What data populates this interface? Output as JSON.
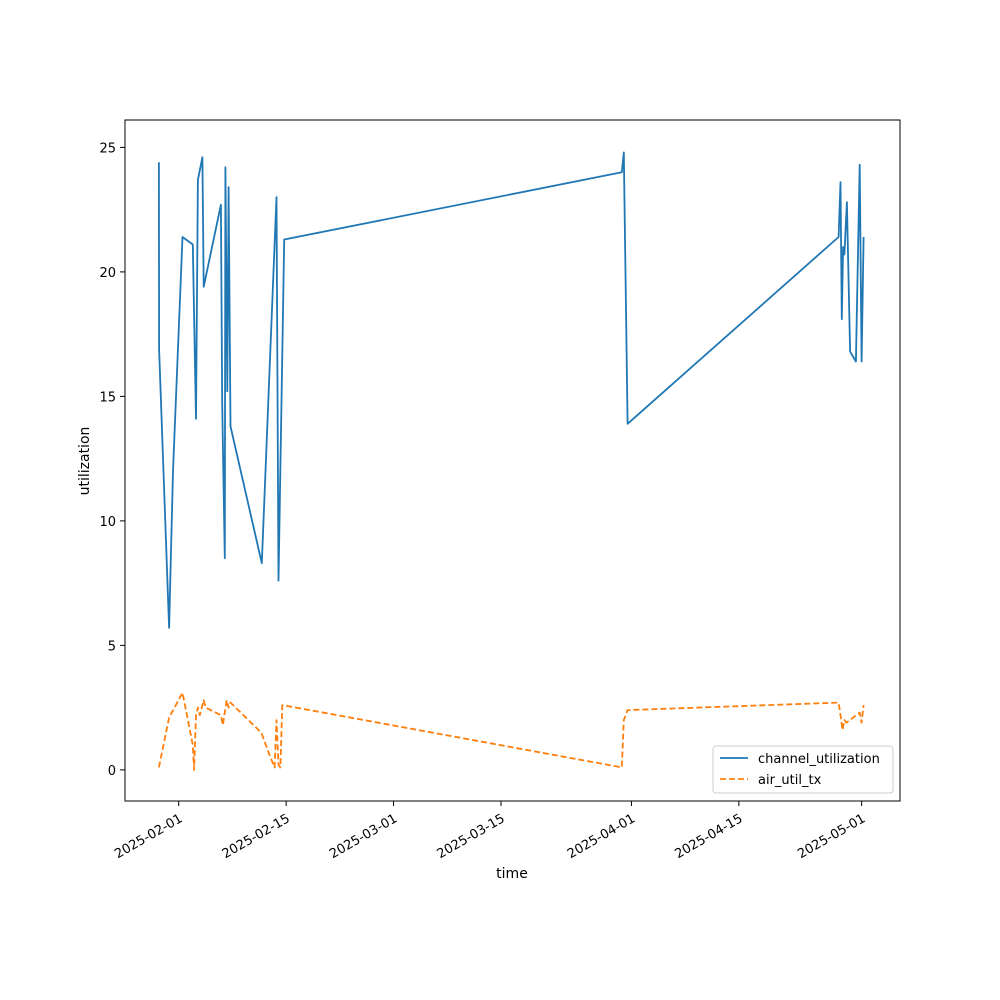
{
  "chart_data": {
    "type": "line",
    "xlabel": "time",
    "ylabel": "utilization",
    "xlim": [
      "2025-01-25",
      "2025-05-06"
    ],
    "ylim": [
      -1.25,
      26.1
    ],
    "x_ticks": [
      "2025-02-01",
      "2025-02-15",
      "2025-03-01",
      "2025-03-15",
      "2025-04-01",
      "2025-04-15",
      "2025-05-01"
    ],
    "y_ticks": [
      0,
      5,
      10,
      15,
      20,
      25
    ],
    "grid": false,
    "legend_position": "lower right",
    "series": [
      {
        "name": "channel_utilization",
        "color": "#1f77b4",
        "dash": "solid",
        "points": [
          [
            "2025-01-29 10:00",
            24.4
          ],
          [
            "2025-01-29 10:30",
            16.9
          ],
          [
            "2025-01-30 18:00",
            5.7
          ],
          [
            "2025-01-31 06:00",
            12.0
          ],
          [
            "2025-02-01 12:00",
            21.4
          ],
          [
            "2025-02-02 20:00",
            21.1
          ],
          [
            "2025-02-03 06:00",
            14.1
          ],
          [
            "2025-02-03 12:00",
            23.7
          ],
          [
            "2025-02-04 02:00",
            24.6
          ],
          [
            "2025-02-04 06:00",
            19.4
          ],
          [
            "2025-02-06 12:00",
            22.7
          ],
          [
            "2025-02-06 16:00",
            14.7
          ],
          [
            "2025-02-07 00:00",
            8.5
          ],
          [
            "2025-02-07 02:00",
            24.2
          ],
          [
            "2025-02-07 08:00",
            15.2
          ],
          [
            "2025-02-07 12:00",
            23.4
          ],
          [
            "2025-02-07 18:00",
            13.8
          ],
          [
            "2025-02-11 20:00",
            8.3
          ],
          [
            "2025-02-12 20:00",
            16.0
          ],
          [
            "2025-02-13 18:00",
            23.0
          ],
          [
            "2025-02-14 00:00",
            7.6
          ],
          [
            "2025-02-14 18:00",
            21.3
          ],
          [
            "2025-03-30 18:00",
            24.0
          ],
          [
            "2025-03-31 00:00",
            24.8
          ],
          [
            "2025-03-31 12:00",
            13.9
          ],
          [
            "2025-04-28 00:00",
            21.4
          ],
          [
            "2025-04-28 06:00",
            23.6
          ],
          [
            "2025-04-28 10:00",
            18.1
          ],
          [
            "2025-04-28 14:00",
            21.0
          ],
          [
            "2025-04-28 18:00",
            20.7
          ],
          [
            "2025-04-29 02:00",
            22.8
          ],
          [
            "2025-04-29 12:00",
            16.8
          ],
          [
            "2025-04-30 06:00",
            16.4
          ],
          [
            "2025-04-30 18:00",
            24.3
          ],
          [
            "2025-05-01 00:00",
            16.4
          ],
          [
            "2025-05-01 06:00",
            21.4
          ]
        ]
      },
      {
        "name": "air_util_tx",
        "color": "#ff7f0e",
        "dash": "dashed",
        "points": [
          [
            "2025-01-29 10:00",
            0.1
          ],
          [
            "2025-01-30 18:00",
            2.1
          ],
          [
            "2025-02-01 12:00",
            3.1
          ],
          [
            "2025-02-02 20:00",
            1.0
          ],
          [
            "2025-02-03 00:00",
            0.0
          ],
          [
            "2025-02-03 06:00",
            2.2
          ],
          [
            "2025-02-03 12:00",
            2.5
          ],
          [
            "2025-02-03 18:00",
            2.2
          ],
          [
            "2025-02-04 06:00",
            2.8
          ],
          [
            "2025-02-04 12:00",
            2.5
          ],
          [
            "2025-02-06 12:00",
            2.2
          ],
          [
            "2025-02-06 18:00",
            1.8
          ],
          [
            "2025-02-07 06:00",
            2.8
          ],
          [
            "2025-02-07 12:00",
            2.5
          ],
          [
            "2025-02-07 18:00",
            2.7
          ],
          [
            "2025-02-11 18:00",
            1.5
          ],
          [
            "2025-02-12 20:00",
            0.6
          ],
          [
            "2025-02-13 12:00",
            0.1
          ],
          [
            "2025-02-13 18:00",
            2.0
          ],
          [
            "2025-02-14 00:00",
            0.2
          ],
          [
            "2025-02-14 06:00",
            0.1
          ],
          [
            "2025-02-14 12:00",
            2.6
          ],
          [
            "2025-03-30 18:00",
            0.1
          ],
          [
            "2025-03-31 00:00",
            2.0
          ],
          [
            "2025-03-31 12:00",
            2.4
          ],
          [
            "2025-04-28 00:00",
            2.7
          ],
          [
            "2025-04-28 06:00",
            2.2
          ],
          [
            "2025-04-28 12:00",
            1.6
          ],
          [
            "2025-04-28 18:00",
            2.0
          ],
          [
            "2025-04-29 00:00",
            1.9
          ],
          [
            "2025-04-29 12:00",
            2.0
          ],
          [
            "2025-04-30 06:00",
            2.2
          ],
          [
            "2025-04-30 18:00",
            2.3
          ],
          [
            "2025-05-01 00:00",
            1.9
          ],
          [
            "2025-05-01 06:00",
            2.6
          ]
        ]
      }
    ]
  }
}
